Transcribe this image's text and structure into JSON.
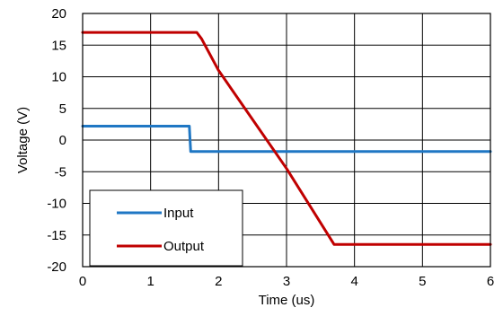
{
  "chart_data": {
    "type": "line",
    "title": "",
    "xlabel": "Time (us)",
    "ylabel": "Voltage (V)",
    "xlim": [
      0,
      6
    ],
    "ylim": [
      -20,
      20
    ],
    "xticks": [
      "0",
      "1",
      "2",
      "3",
      "4",
      "5",
      "6"
    ],
    "yticks": [
      "20",
      "15",
      "10",
      "5",
      "0",
      "-5",
      "-10",
      "-15",
      "-20"
    ],
    "grid": true,
    "legend_position": "bottom-left",
    "series": [
      {
        "name": "Input",
        "color": "#1f77c4",
        "x": [
          0,
          1.57,
          1.58,
          1.59,
          6.0
        ],
        "y": [
          2.2,
          2.2,
          0.0,
          -1.8,
          -1.8
        ]
      },
      {
        "name": "Output",
        "color": "#c00000",
        "x": [
          0,
          1.68,
          1.75,
          2.0,
          3.0,
          3.7,
          6.0
        ],
        "y": [
          17.0,
          17.0,
          16.0,
          11.0,
          -4.5,
          -16.5,
          -16.5
        ]
      }
    ]
  }
}
